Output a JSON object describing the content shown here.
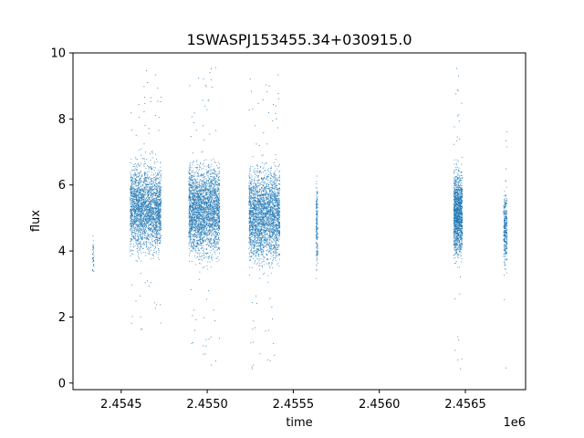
{
  "chart_data": {
    "type": "scatter",
    "title": "1SWASPJ153455.34+030915.0",
    "xlabel": "time",
    "ylabel": "flux",
    "x_offset_label": "1e6",
    "xlim": [
      2454220,
      2456850
    ],
    "ylim": [
      -0.2,
      10.0
    ],
    "x_ticks": [
      2454500,
      2455000,
      2455500,
      2456000,
      2456500
    ],
    "x_tick_labels": [
      "2.4545",
      "2.4550",
      "2.4555",
      "2.4560",
      "2.4565"
    ],
    "y_ticks": [
      0,
      2,
      4,
      6,
      8,
      10
    ],
    "y_tick_labels": [
      "0",
      "2",
      "4",
      "6",
      "8",
      "10"
    ],
    "grid": false,
    "series_color": "#1f77b4",
    "clusters": [
      {
        "x_range": [
          2454330,
          2454340
        ],
        "y_range": [
          3.0,
          4.7
        ],
        "density": 40
      },
      {
        "x_range": [
          2454550,
          2454730
        ],
        "y_range": [
          3.4,
          7.2
        ],
        "density": 2600,
        "outlier_y": [
          1.5,
          9.5
        ]
      },
      {
        "x_range": [
          2454890,
          2455070
        ],
        "y_range": [
          3.2,
          7.3
        ],
        "density": 2800,
        "outlier_y": [
          0.3,
          9.6
        ]
      },
      {
        "x_range": [
          2455240,
          2455420
        ],
        "y_range": [
          3.0,
          7.2
        ],
        "density": 2700,
        "outlier_y": [
          0.4,
          9.4
        ]
      },
      {
        "x_range": [
          2455630,
          2455640
        ],
        "y_range": [
          2.9,
          6.7
        ],
        "density": 180
      },
      {
        "x_range": [
          2456430,
          2456480
        ],
        "y_range": [
          3.3,
          7.0
        ],
        "density": 1400,
        "outlier_y": [
          0.2,
          9.6
        ]
      },
      {
        "x_range": [
          2456720,
          2456740
        ],
        "y_range": [
          3.0,
          6.3
        ],
        "density": 350,
        "outlier_y": [
          0.3,
          9.0
        ]
      }
    ]
  }
}
